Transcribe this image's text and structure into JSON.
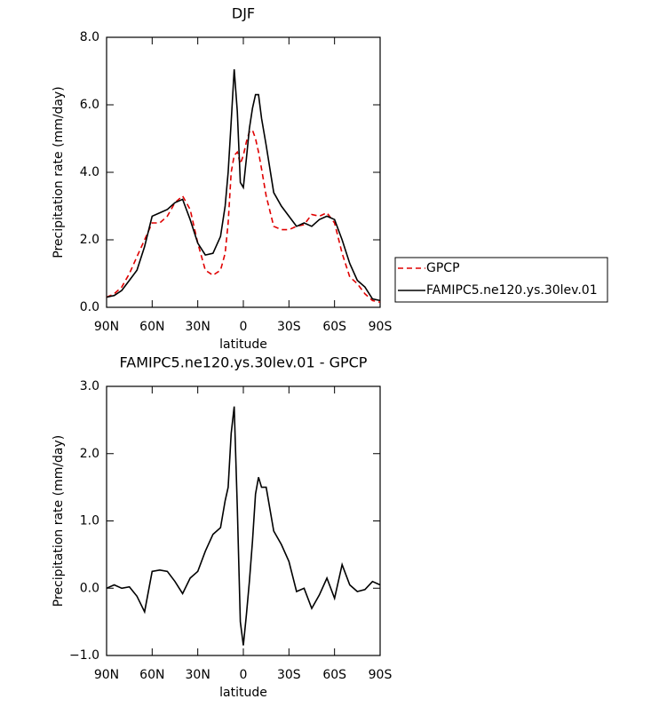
{
  "chart_data": [
    {
      "type": "line",
      "title": "DJF",
      "xlabel": "latitude",
      "ylabel": "Precipitation rate (mm/day)",
      "x": [
        90,
        85,
        80,
        75,
        70,
        65,
        60,
        55,
        50,
        45,
        40,
        35,
        30,
        25,
        20,
        15,
        12,
        10,
        8,
        6,
        4,
        2,
        0,
        -2,
        -4,
        -6,
        -8,
        -10,
        -12,
        -15,
        -20,
        -25,
        -30,
        -35,
        -40,
        -45,
        -50,
        -55,
        -60,
        -65,
        -70,
        -75,
        -80,
        -85,
        -90
      ],
      "xlim": [
        90,
        -90
      ],
      "xticks": [
        {
          "value": 90,
          "label": "90N"
        },
        {
          "value": 60,
          "label": "60N"
        },
        {
          "value": 30,
          "label": "30N"
        },
        0,
        {
          "value": -30,
          "label": "30S"
        },
        {
          "value": -60,
          "label": "60S"
        },
        {
          "value": -90,
          "label": "90S"
        }
      ],
      "ylim": [
        0,
        8
      ],
      "yticks": [
        {
          "value": 0,
          "label": "0.0"
        },
        {
          "value": 2,
          "label": "2.0"
        },
        {
          "value": 4,
          "label": "4.0"
        },
        {
          "value": 6,
          "label": "6.0"
        },
        {
          "value": 8,
          "label": "8.0"
        }
      ],
      "legend": "right",
      "series": [
        {
          "name": "GPCP",
          "color": "#e00000",
          "dash": true,
          "values": [
            0.3,
            0.4,
            0.6,
            1.0,
            1.5,
            2.0,
            2.5,
            2.5,
            2.7,
            3.1,
            3.3,
            2.9,
            1.9,
            1.1,
            0.95,
            1.1,
            1.6,
            2.5,
            4.0,
            4.5,
            4.6,
            4.25,
            4.5,
            4.9,
            5.2,
            5.25,
            5.0,
            4.6,
            4.1,
            3.3,
            2.4,
            2.3,
            2.3,
            2.4,
            2.45,
            2.75,
            2.7,
            2.8,
            2.5,
            1.6,
            0.9,
            0.7,
            0.4,
            0.2,
            0.15
          ]
        },
        {
          "name": "FAMIPC5.ne120.ys.30lev.01",
          "color": "#000000",
          "dash": false,
          "values": [
            0.3,
            0.35,
            0.5,
            0.8,
            1.1,
            1.8,
            2.7,
            2.8,
            2.9,
            3.1,
            3.2,
            2.6,
            1.9,
            1.55,
            1.6,
            2.1,
            3.0,
            4.0,
            5.5,
            7.05,
            5.8,
            3.7,
            3.55,
            4.4,
            5.3,
            5.9,
            6.3,
            6.3,
            5.6,
            4.8,
            3.4,
            3.0,
            2.7,
            2.4,
            2.5,
            2.4,
            2.6,
            2.7,
            2.6,
            2.0,
            1.3,
            0.8,
            0.6,
            0.25,
            0.2
          ]
        }
      ]
    },
    {
      "type": "line",
      "title": "FAMIPC5.ne120.ys.30lev.01 - GPCP",
      "xlabel": "latitude",
      "ylabel": "Precipitation rate (mm/day)",
      "x": [
        90,
        85,
        80,
        75,
        70,
        65,
        60,
        55,
        50,
        45,
        40,
        35,
        30,
        25,
        20,
        15,
        12,
        10,
        8,
        6,
        4,
        2,
        0,
        -2,
        -4,
        -6,
        -8,
        -10,
        -12,
        -15,
        -20,
        -25,
        -30,
        -35,
        -40,
        -45,
        -50,
        -55,
        -60,
        -65,
        -70,
        -75,
        -80,
        -85,
        -90
      ],
      "xlim": [
        90,
        -90
      ],
      "xticks": [
        {
          "value": 90,
          "label": "90N"
        },
        {
          "value": 60,
          "label": "60N"
        },
        {
          "value": 30,
          "label": "30N"
        },
        0,
        {
          "value": -30,
          "label": "30S"
        },
        {
          "value": -60,
          "label": "60S"
        },
        {
          "value": -90,
          "label": "90S"
        }
      ],
      "ylim": [
        -1,
        3
      ],
      "yticks": [
        {
          "value": -1,
          "label": "−1.0"
        },
        {
          "value": 0,
          "label": "0.0"
        },
        {
          "value": 1,
          "label": "1.0"
        },
        {
          "value": 2,
          "label": "2.0"
        },
        {
          "value": 3,
          "label": "3.0"
        }
      ],
      "series": [
        {
          "color": "#000000",
          "dash": false,
          "values": [
            0.0,
            0.05,
            0.0,
            0.02,
            -0.12,
            -0.35,
            0.25,
            0.27,
            0.25,
            0.1,
            -0.08,
            0.15,
            0.25,
            0.55,
            0.8,
            0.9,
            1.3,
            1.5,
            2.3,
            2.7,
            1.2,
            -0.5,
            -0.85,
            -0.4,
            0.1,
            0.7,
            1.4,
            1.65,
            1.5,
            1.5,
            0.85,
            0.65,
            0.4,
            -0.05,
            0.0,
            -0.3,
            -0.1,
            0.15,
            -0.15,
            0.35,
            0.05,
            -0.05,
            -0.02,
            0.1,
            0.05
          ]
        }
      ]
    }
  ]
}
